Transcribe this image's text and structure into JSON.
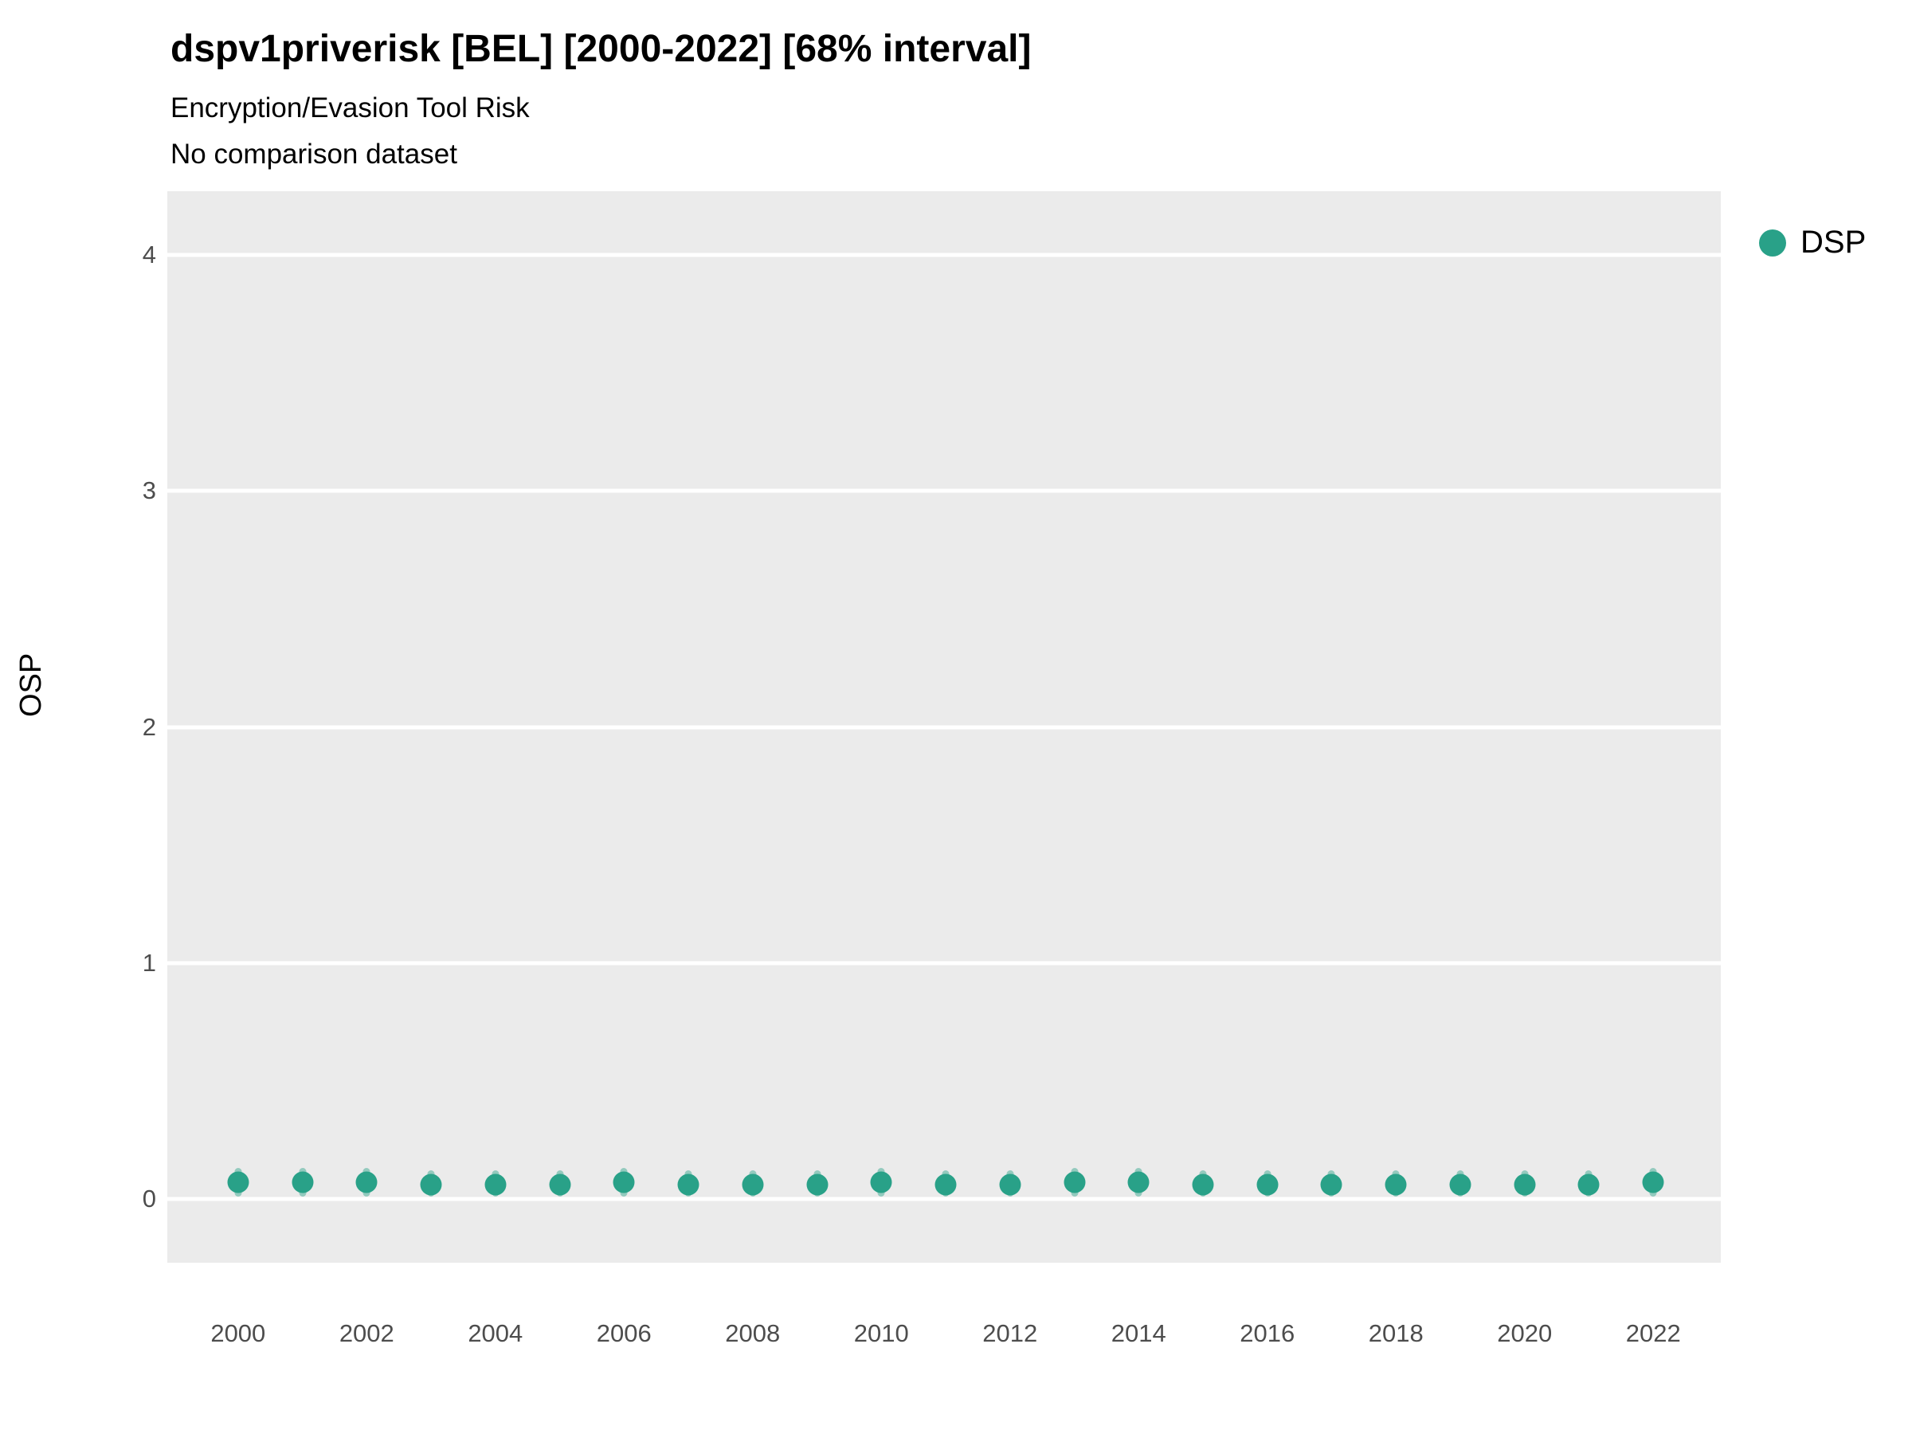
{
  "header": {
    "title": "dspv1priverisk [BEL] [2000-2022] [68% interval]",
    "subtitle": "Encryption/Evasion Tool Risk",
    "note": "No comparison dataset"
  },
  "chart_data": {
    "type": "scatter",
    "title": "dspv1priverisk [BEL] [2000-2022] [68% interval]",
    "subtitle": "Encryption/Evasion Tool Risk",
    "note": "No comparison dataset",
    "xlabel": "",
    "ylabel": "OSP",
    "interval": "68%",
    "panel_bg": "#EBEBEB",
    "grid": "horizontal white major gridlines",
    "legend_position": "right",
    "ylim": [
      -0.27,
      4.27
    ],
    "xlim": [
      1998.9,
      2023.05
    ],
    "yticks": [
      0,
      1,
      2,
      3,
      4
    ],
    "xticks": [
      2000,
      2002,
      2004,
      2006,
      2008,
      2010,
      2012,
      2014,
      2016,
      2018,
      2020,
      2022
    ],
    "series": [
      {
        "name": "DSP",
        "color": "#29A188",
        "interval_color": "rgba(41,161,136,0.45)",
        "points": [
          {
            "x": 2000,
            "y": 0.07,
            "lo": 0.01,
            "hi": 0.13
          },
          {
            "x": 2001,
            "y": 0.07,
            "lo": 0.01,
            "hi": 0.13
          },
          {
            "x": 2002,
            "y": 0.07,
            "lo": 0.01,
            "hi": 0.13
          },
          {
            "x": 2003,
            "y": 0.06,
            "lo": 0.01,
            "hi": 0.12
          },
          {
            "x": 2004,
            "y": 0.06,
            "lo": 0.01,
            "hi": 0.12
          },
          {
            "x": 2005,
            "y": 0.06,
            "lo": 0.01,
            "hi": 0.12
          },
          {
            "x": 2006,
            "y": 0.07,
            "lo": 0.01,
            "hi": 0.13
          },
          {
            "x": 2007,
            "y": 0.06,
            "lo": 0.01,
            "hi": 0.12
          },
          {
            "x": 2008,
            "y": 0.06,
            "lo": 0.01,
            "hi": 0.12
          },
          {
            "x": 2009,
            "y": 0.06,
            "lo": 0.01,
            "hi": 0.12
          },
          {
            "x": 2010,
            "y": 0.07,
            "lo": 0.01,
            "hi": 0.13
          },
          {
            "x": 2011,
            "y": 0.06,
            "lo": 0.01,
            "hi": 0.12
          },
          {
            "x": 2012,
            "y": 0.06,
            "lo": 0.01,
            "hi": 0.12
          },
          {
            "x": 2013,
            "y": 0.07,
            "lo": 0.01,
            "hi": 0.13
          },
          {
            "x": 2014,
            "y": 0.07,
            "lo": 0.01,
            "hi": 0.13
          },
          {
            "x": 2015,
            "y": 0.06,
            "lo": 0.01,
            "hi": 0.12
          },
          {
            "x": 2016,
            "y": 0.06,
            "lo": 0.01,
            "hi": 0.12
          },
          {
            "x": 2017,
            "y": 0.06,
            "lo": 0.01,
            "hi": 0.12
          },
          {
            "x": 2018,
            "y": 0.06,
            "lo": 0.01,
            "hi": 0.12
          },
          {
            "x": 2019,
            "y": 0.06,
            "lo": 0.01,
            "hi": 0.12
          },
          {
            "x": 2020,
            "y": 0.06,
            "lo": 0.01,
            "hi": 0.12
          },
          {
            "x": 2021,
            "y": 0.06,
            "lo": 0.01,
            "hi": 0.12
          },
          {
            "x": 2022,
            "y": 0.07,
            "lo": 0.01,
            "hi": 0.13
          }
        ]
      }
    ],
    "legend": [
      {
        "label": "DSP",
        "color": "#29A188"
      }
    ]
  }
}
